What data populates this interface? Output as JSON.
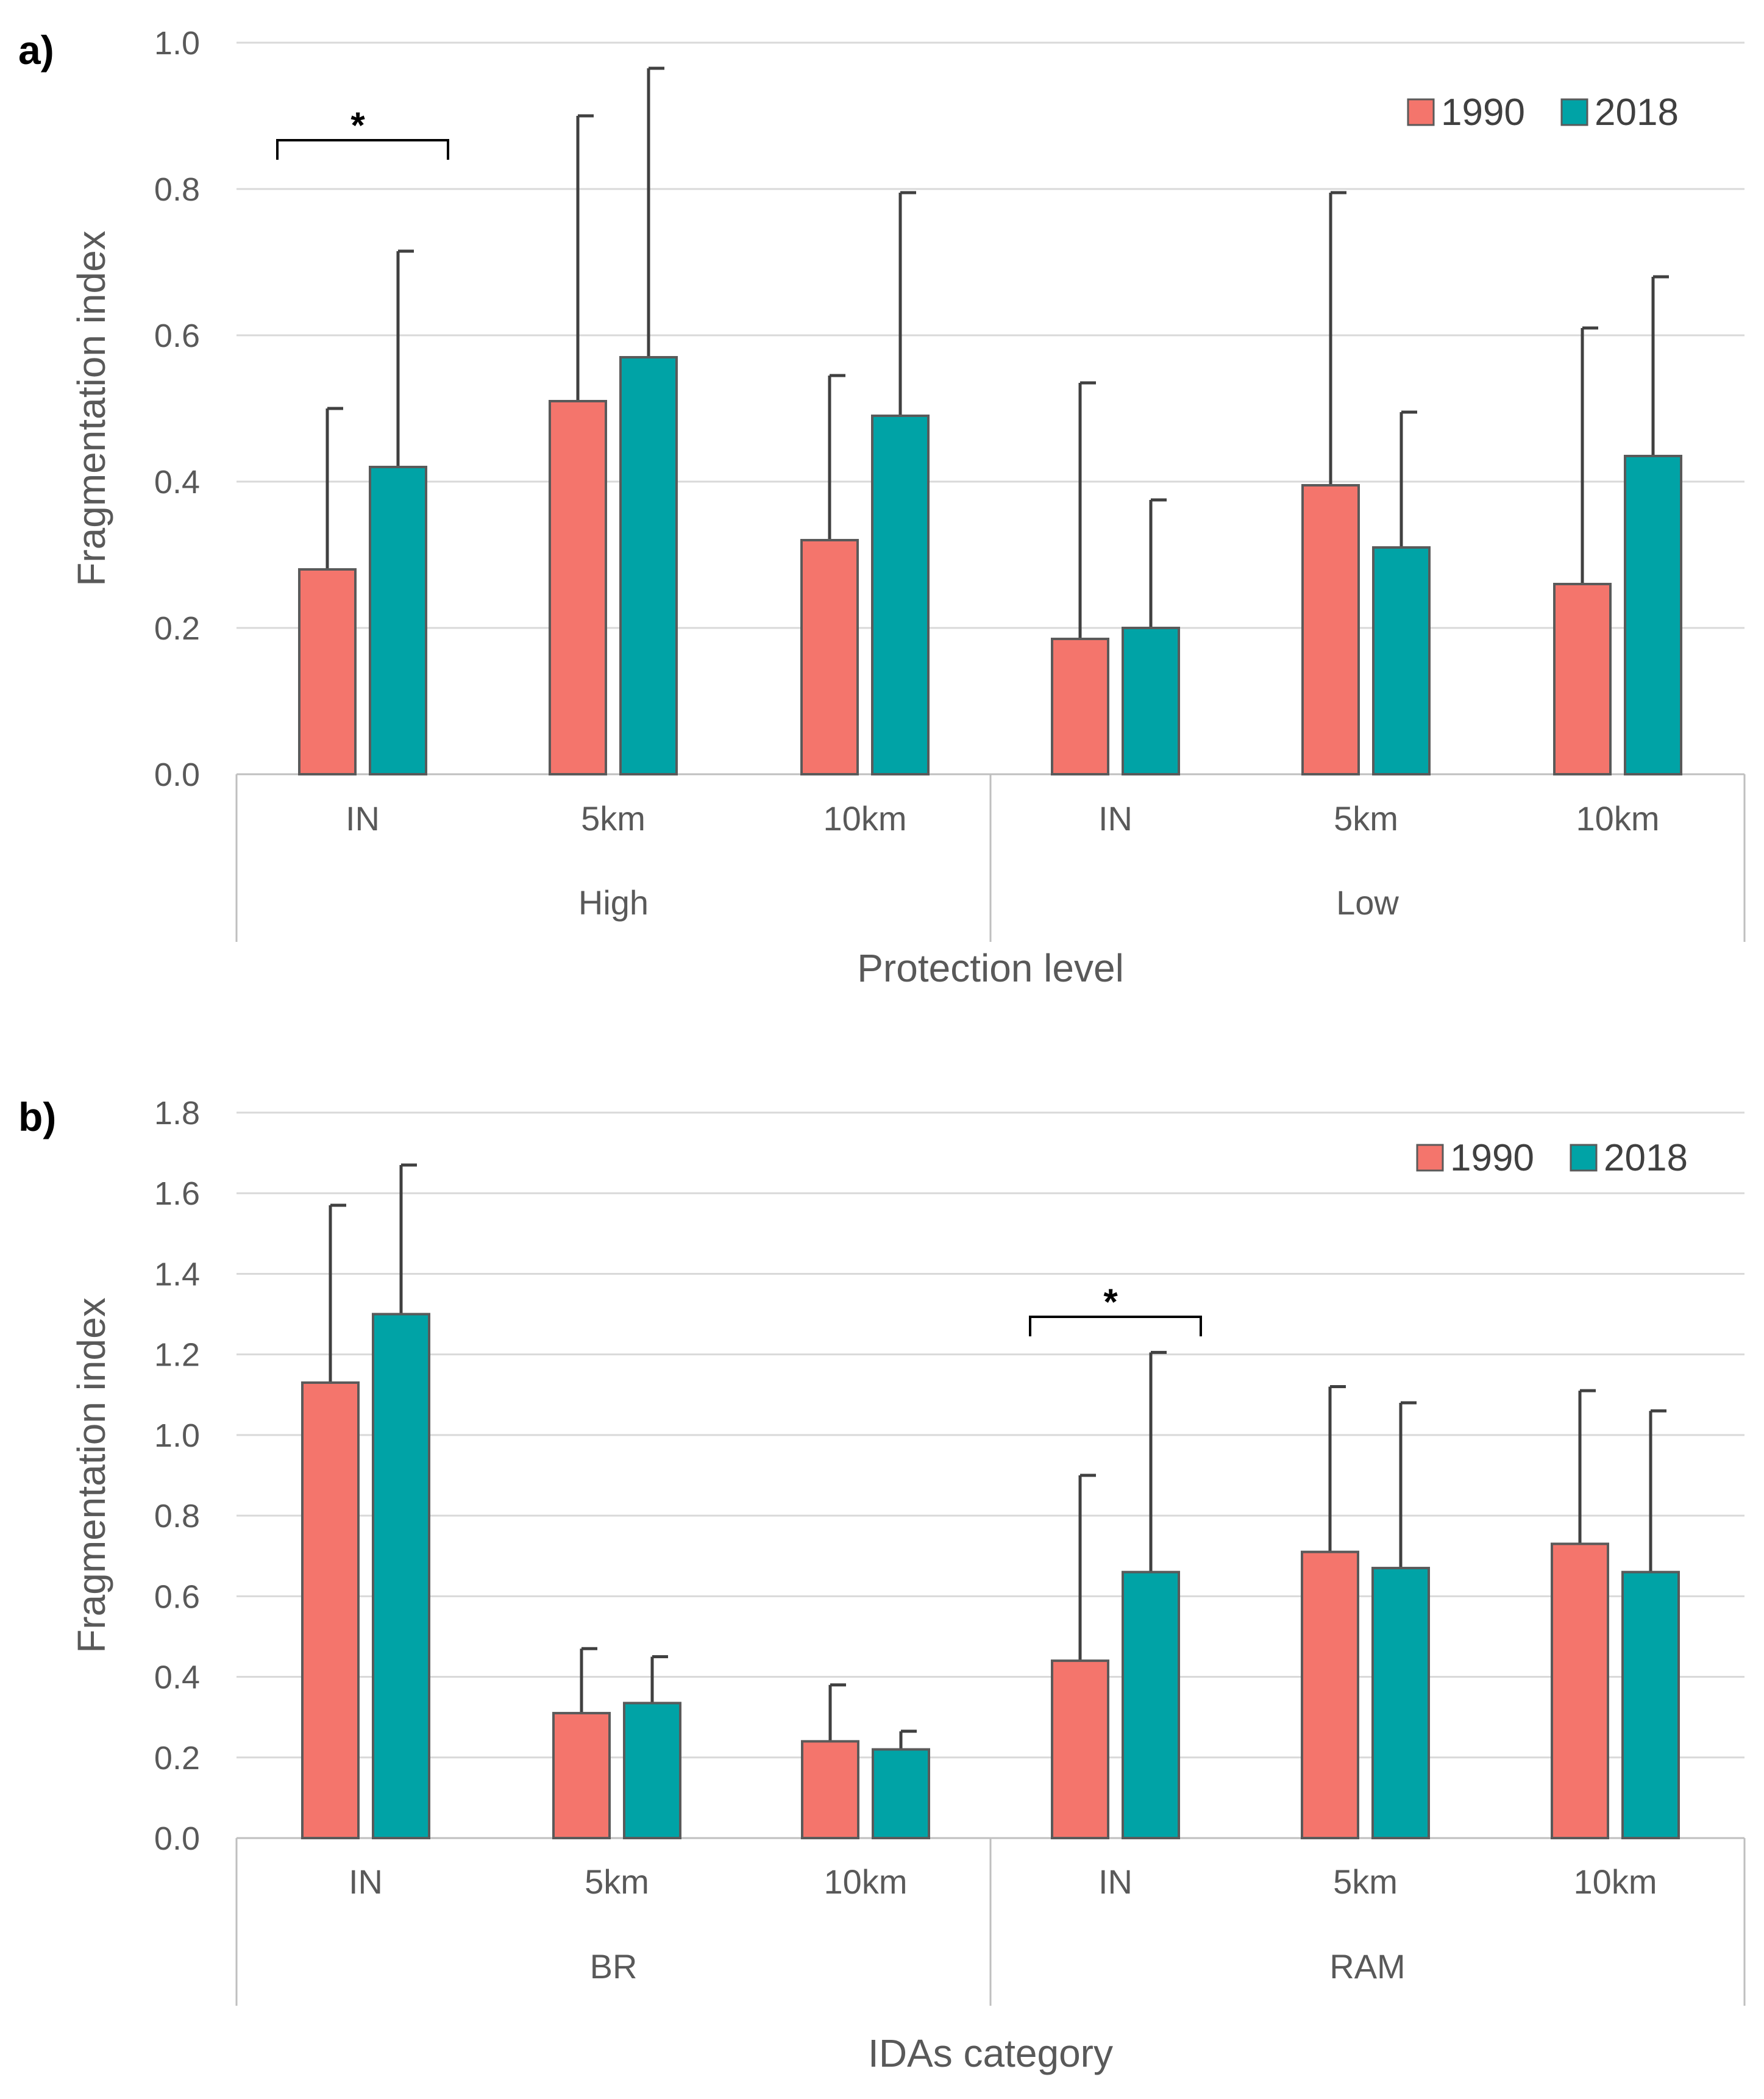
{
  "chart_data": [
    {
      "panel_label": "a)",
      "type": "bar",
      "ylabel": "Fragmentation index",
      "xlabel": "Protection level",
      "ylim": [
        0,
        1.0
      ],
      "yticks": [
        "0.0",
        "0.2",
        "0.4",
        "0.6",
        "0.8",
        "1.0"
      ],
      "groups": [
        "High",
        "Low"
      ],
      "categories": [
        "IN",
        "5km",
        "10km",
        "IN",
        "5km",
        "10km"
      ],
      "legend": {
        "placement": "top-right",
        "colors": [
          "#f4756c",
          "#00a3a6"
        ]
      },
      "series": [
        {
          "name": "1990",
          "values": [
            0.28,
            0.51,
            0.32,
            0.185,
            0.395,
            0.26
          ],
          "errors": [
            0.22,
            0.39,
            0.225,
            0.35,
            0.4,
            0.35
          ]
        },
        {
          "name": "2018",
          "values": [
            0.42,
            0.57,
            0.49,
            0.2,
            0.31,
            0.435
          ],
          "errors": [
            0.295,
            0.395,
            0.305,
            0.175,
            0.185,
            0.245
          ]
        }
      ],
      "annotations": [
        {
          "text": "*",
          "category_index": 0
        }
      ]
    },
    {
      "panel_label": "b)",
      "type": "bar",
      "ylabel": "Fragmentation index",
      "xlabel": "IDAs category",
      "ylim": [
        0,
        1.8
      ],
      "yticks": [
        "0.0",
        "0.2",
        "0.4",
        "0.6",
        "0.8",
        "1.0",
        "1.2",
        "1.4",
        "1.6",
        "1.8"
      ],
      "groups": [
        "BR",
        "RAM"
      ],
      "categories": [
        "IN",
        "5km",
        "10km",
        "IN",
        "5km",
        "10km"
      ],
      "legend": {
        "placement": "top-right",
        "colors": [
          "#f4756c",
          "#00a3a6"
        ]
      },
      "series": [
        {
          "name": "1990",
          "values": [
            1.13,
            0.31,
            0.24,
            0.44,
            0.71,
            0.73
          ],
          "errors": [
            0.44,
            0.16,
            0.14,
            0.46,
            0.41,
            0.38
          ]
        },
        {
          "name": "2018",
          "values": [
            1.3,
            0.335,
            0.22,
            0.66,
            0.67,
            0.66
          ],
          "errors": [
            0.37,
            0.115,
            0.045,
            0.545,
            0.41,
            0.4
          ]
        }
      ],
      "annotations": [
        {
          "text": "*",
          "category_index": 3
        }
      ]
    }
  ]
}
